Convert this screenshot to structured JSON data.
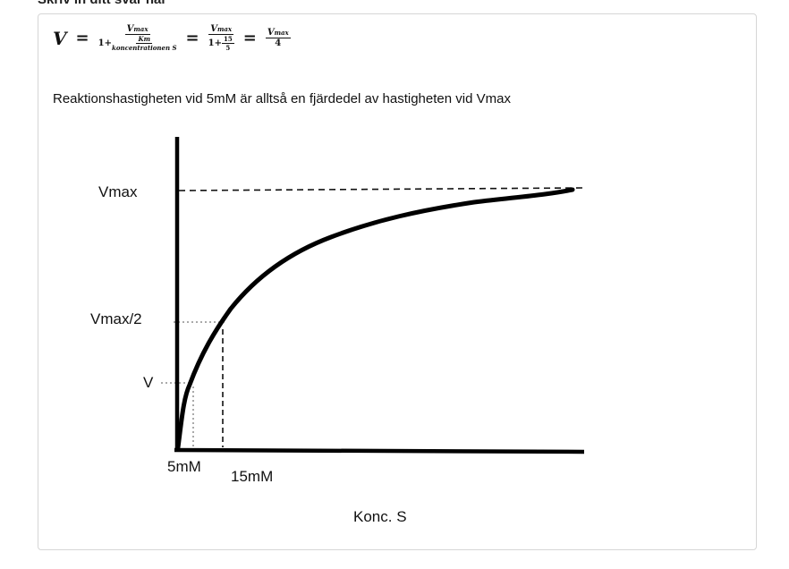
{
  "heading": "Skriv in ditt svar här",
  "formula": {
    "lhs": "V",
    "vmax": "V",
    "vmax_sub": "max",
    "one_plus": "1+",
    "km": "K",
    "km_sub": "m",
    "conc": "koncentrationen S",
    "n15": "15",
    "n5": "5",
    "four": "4",
    "eq": "="
  },
  "answer_text": "Reaktionshastigheten vid 5mM är alltså en fjärdedel av hastigheten vid Vmax",
  "graph": {
    "y_labels": [
      "Vmax",
      "Vmax/2",
      "V"
    ],
    "x_labels": [
      "5mM",
      "15mM"
    ],
    "x_axis_title": "Konc. S"
  }
}
